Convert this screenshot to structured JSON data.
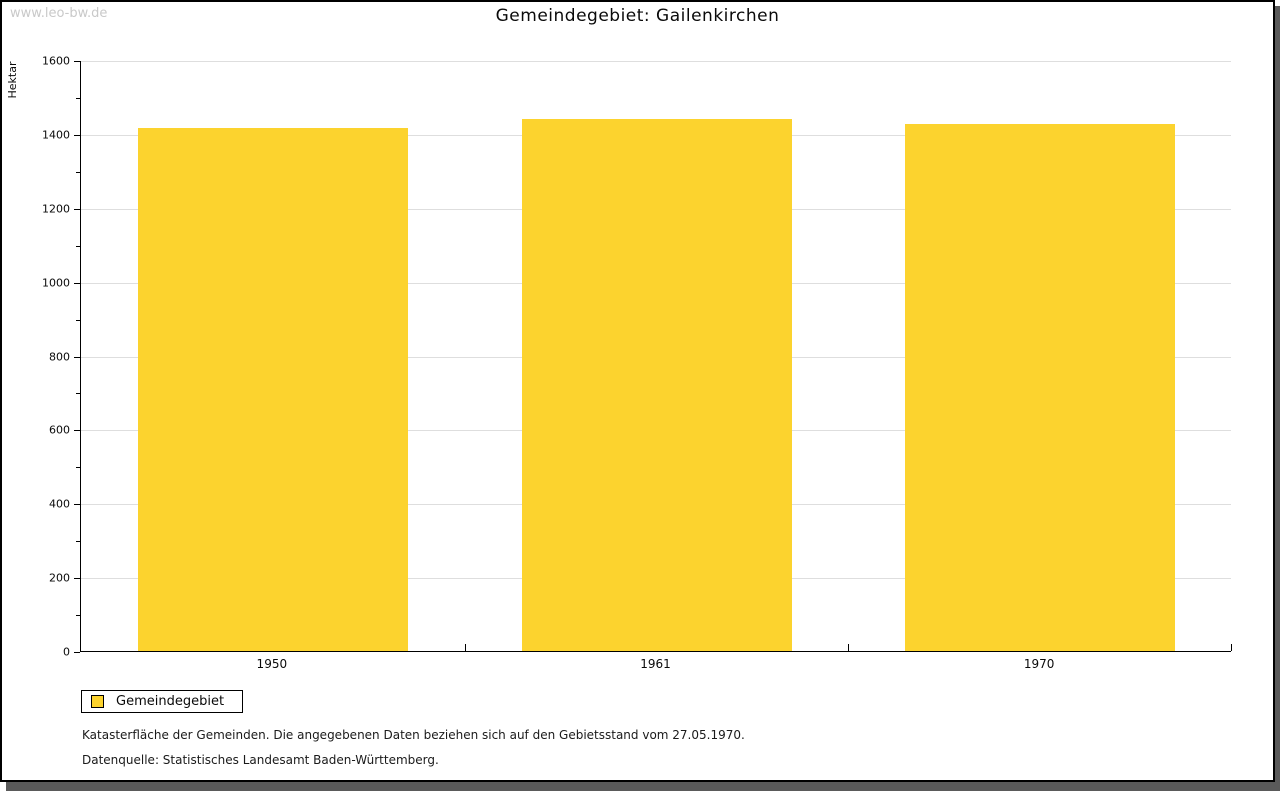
{
  "watermark": "www.leo-bw.de",
  "chart_data": {
    "type": "bar",
    "title": "Gemeindegebiet: Gailenkirchen",
    "categories": [
      "1950",
      "1961",
      "1970"
    ],
    "series": [
      {
        "name": "Gemeindegebiet",
        "values": [
          1415,
          1440,
          1427
        ]
      }
    ],
    "xlabel": "",
    "ylabel": "Hektar",
    "ylim": [
      0,
      1600
    ],
    "ytick_step": 200,
    "ytick_minor_step": 100,
    "grid": true,
    "legend_position": "bottom-left",
    "bar_color": "#FCD32E"
  },
  "legend": {
    "items": [
      {
        "label": "Gemeindegebiet",
        "color": "#FCD32E"
      }
    ]
  },
  "footer": {
    "line1": "Katasterfläche der Gemeinden. Die angegebenen Daten beziehen sich auf den Gebietsstand vom 27.05.1970.",
    "line2": "Datenquelle: Statistisches Landesamt Baden-Württemberg."
  },
  "colors": {
    "bar": "#FCD32E",
    "grid": "#dedede",
    "axis": "#000000",
    "watermark": "#c9c9c9",
    "frame_shadow": "#5a5a5a"
  }
}
